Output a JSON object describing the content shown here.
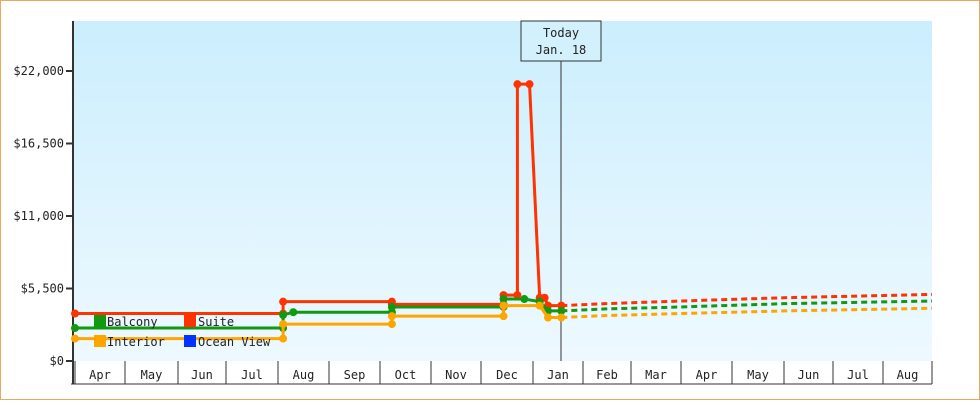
{
  "chart_data": {
    "type": "line",
    "title": "",
    "xlabel": "",
    "ylabel": "",
    "ylim": [
      0,
      27000
    ],
    "y_ticks": [
      {
        "value": 0,
        "label": "$0"
      },
      {
        "value": 5500,
        "label": "$5,500"
      },
      {
        "value": 11000,
        "label": "$11,000"
      },
      {
        "value": 16500,
        "label": "$16,500"
      },
      {
        "value": 22000,
        "label": "$22,000"
      }
    ],
    "x_months": [
      "Apr",
      "May",
      "Jun",
      "Jul",
      "Aug",
      "Sep",
      "Oct",
      "Nov",
      "Dec",
      "Jan",
      "Feb",
      "Mar",
      "Apr",
      "May",
      "Jun",
      "Jul",
      "Aug"
    ],
    "today_marker": {
      "line1": "Today",
      "line2": "Jan. 18"
    },
    "legend": [
      {
        "name": "Balcony",
        "color": "#119911"
      },
      {
        "name": "Suite",
        "color": "#ff3300"
      },
      {
        "name": "Interior",
        "color": "#ffa500"
      },
      {
        "name": "Ocean View",
        "color": "#0033ff"
      }
    ],
    "series": [
      {
        "name": "Suite",
        "color": "#ff3300",
        "history": [
          [
            "Apr 1",
            3600
          ],
          [
            "Aug 4",
            3600
          ],
          [
            "Aug 4",
            4500
          ],
          [
            "Oct 8",
            4500
          ],
          [
            "Oct 8",
            4300
          ],
          [
            "Dec 14",
            4300
          ],
          [
            "Dec 14",
            5000
          ],
          [
            "Dec 22",
            5000
          ],
          [
            "Dec 22",
            21000
          ],
          [
            "Dec 29",
            21000
          ],
          [
            "Jan 5",
            4800
          ],
          [
            "Jan 8",
            4800
          ],
          [
            "Jan 10",
            4200
          ],
          [
            "Jan 18",
            4200
          ]
        ],
        "forecast": [
          [
            "Jan 18",
            4200
          ],
          [
            "Feb 15",
            4350
          ],
          [
            "Apr 1",
            4550
          ],
          [
            "Jun 1",
            4800
          ],
          [
            "Aug 31",
            5050
          ]
        ]
      },
      {
        "name": "Balcony",
        "color": "#119911",
        "history": [
          [
            "Apr 1",
            2500
          ],
          [
            "Aug 4",
            2500
          ],
          [
            "Aug 4",
            3500
          ],
          [
            "Aug 10",
            3700
          ],
          [
            "Oct 8",
            3700
          ],
          [
            "Oct 8",
            4100
          ],
          [
            "Dec 14",
            4100
          ],
          [
            "Dec 14",
            4700
          ],
          [
            "Dec 26",
            4700
          ],
          [
            "Jan 5",
            4500
          ],
          [
            "Jan 10",
            3800
          ],
          [
            "Jan 18",
            3800
          ]
        ],
        "forecast": [
          [
            "Jan 18",
            3800
          ],
          [
            "Feb 15",
            3950
          ],
          [
            "Apr 1",
            4100
          ],
          [
            "Jun 1",
            4350
          ],
          [
            "Aug 31",
            4550
          ]
        ]
      },
      {
        "name": "Interior",
        "color": "#ffa500",
        "history": [
          [
            "Apr 1",
            1700
          ],
          [
            "Aug 4",
            1700
          ],
          [
            "Aug 4",
            2800
          ],
          [
            "Oct 8",
            2800
          ],
          [
            "Oct 8",
            3400
          ],
          [
            "Dec 14",
            3400
          ],
          [
            "Dec 14",
            4200
          ],
          [
            "Jan 5",
            4200
          ],
          [
            "Jan 10",
            3300
          ],
          [
            "Jan 18",
            3300
          ]
        ],
        "forecast": [
          [
            "Jan 18",
            3300
          ],
          [
            "Feb 15",
            3450
          ],
          [
            "Apr 1",
            3600
          ],
          [
            "Jun 1",
            3800
          ],
          [
            "Aug 31",
            4000
          ]
        ]
      },
      {
        "name": "Ocean View",
        "color": "#0033ff",
        "history": [],
        "forecast": []
      }
    ]
  }
}
